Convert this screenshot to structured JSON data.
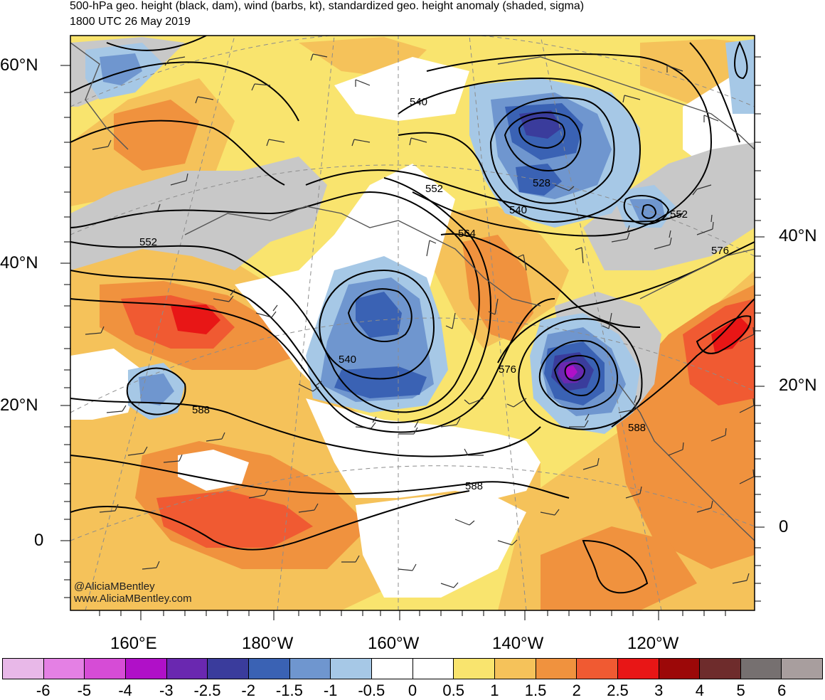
{
  "header": {
    "title": "500-hPa geo. height (black, dam), wind (barbs, kt), standardized geo. height anomaly (shaded, sigma)",
    "valid_time": "1800 UTC 26 May 2019"
  },
  "axes": {
    "left_lat_labels": [
      "60°N",
      "40°N",
      "20°N",
      "0"
    ],
    "right_lat_labels": [
      "40°N",
      "20°N",
      "0"
    ],
    "lon_labels": [
      "160°E",
      "180°W",
      "160°W",
      "140°W",
      "120°W"
    ]
  },
  "contour_labels": [
    "540",
    "552",
    "552",
    "528",
    "540",
    "552",
    "564",
    "576",
    "540",
    "576",
    "588",
    "588",
    "588"
  ],
  "credits": {
    "handle": "@AliciaMBentley",
    "website": "www.AliciaMBentley.com"
  },
  "colorbar": {
    "colors": [
      "#e8b8e8",
      "#e480e4",
      "#d64cd6",
      "#b010c8",
      "#6a28b0",
      "#3a3c9c",
      "#3a62b4",
      "#6f96cf",
      "#a6c8e6",
      "#ffffff",
      "#ffffff",
      "#f9e46e",
      "#f5c25a",
      "#f0923e",
      "#f05a32",
      "#e81616",
      "#9c0808",
      "#6e2c2c",
      "#767070",
      "#a89e9e"
    ],
    "labels": [
      "-6",
      "-5",
      "-4",
      "-3",
      "-2.5",
      "-2",
      "-1.5",
      "-1",
      "-0.5",
      "0",
      "0.5",
      "1",
      "1.5",
      "2",
      "2.5",
      "3",
      "4",
      "5",
      "6"
    ]
  }
}
